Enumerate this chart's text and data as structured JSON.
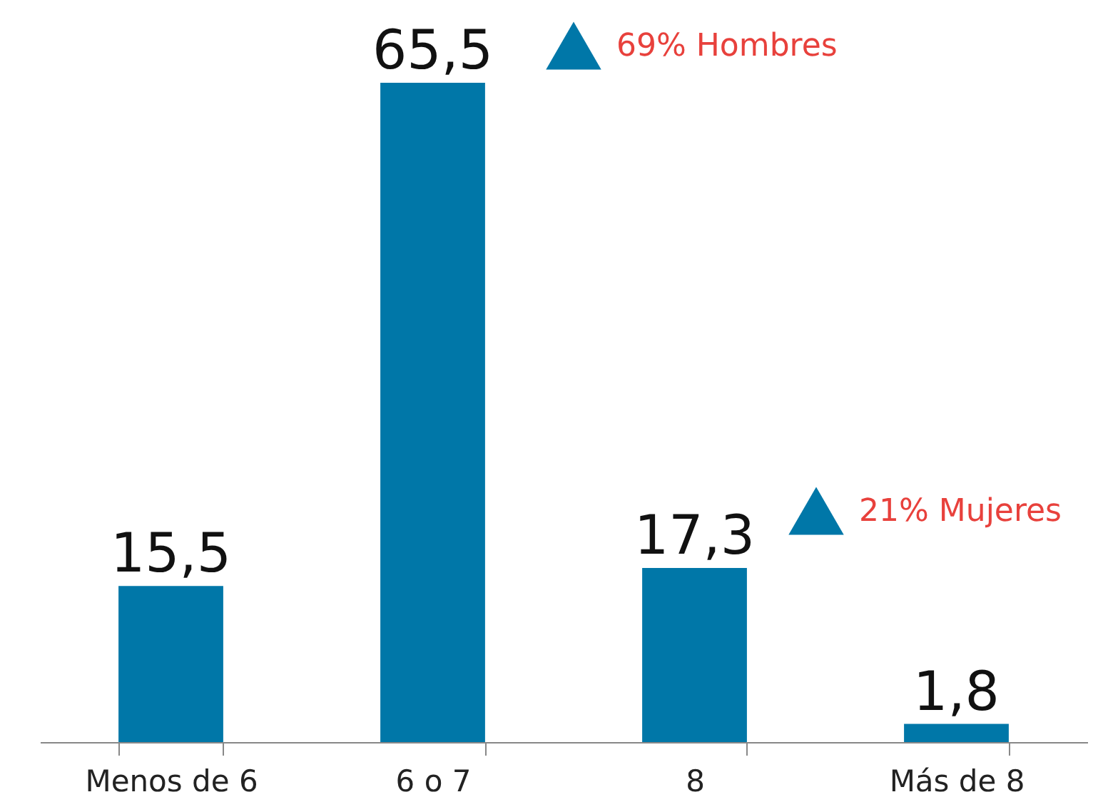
{
  "chart_data": {
    "type": "bar",
    "categories": [
      "Menos de 6",
      "6 o 7",
      "8",
      "Más de 8"
    ],
    "values": [
      15.5,
      65.5,
      17.3,
      1.8
    ],
    "color": "#0077a8",
    "value_labels": [
      "15,5",
      "65,5",
      "17,3",
      "1,8"
    ],
    "annotations": [
      "69% Hombres",
      "21% Mujeres"
    ],
    "grid": false
  }
}
